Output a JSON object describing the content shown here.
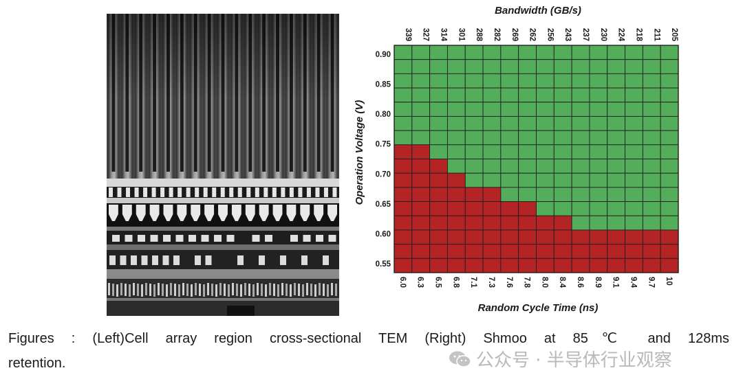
{
  "left_panel": {
    "type": "TEM cross-section image"
  },
  "chart_data": {
    "type": "heatmap",
    "title": "",
    "top_axis_label": "Bandwidth (GB/s)",
    "top_ticks": [
      "339",
      "327",
      "314",
      "301",
      "288",
      "282",
      "269",
      "262",
      "256",
      "243",
      "237",
      "230",
      "224",
      "218",
      "211",
      "205"
    ],
    "xlabel": "Random Cycle Time (ns)",
    "x": [
      "6.0",
      "6.3",
      "6.5",
      "6.8",
      "7.1",
      "7.3",
      "7.6",
      "7.8",
      "8.0",
      "8.4",
      "8.6",
      "8.9",
      "9.1",
      "9.4",
      "9.7",
      "10"
    ],
    "ylabel": "Operation Voltage (V)",
    "y_ticks": [
      "0.90",
      "0.85",
      "0.80",
      "0.75",
      "0.70",
      "0.65",
      "0.60",
      "0.55"
    ],
    "y_range": [
      0.535,
      0.915
    ],
    "rows": 16,
    "min_pass_voltage": [
      0.745,
      0.745,
      0.72,
      0.695,
      0.67,
      0.67,
      0.645,
      0.645,
      0.62,
      0.62,
      0.595,
      0.595,
      0.595,
      0.595,
      0.595,
      0.595
    ],
    "colors": {
      "pass": "#54ad5b",
      "fail": "#b42424",
      "grid": "#1f1f1f"
    }
  },
  "caption": {
    "line1": "Figures : (Left)Cell array region cross-sectional TEM  (Right) Shmoo at 85℃ and 128ms",
    "line2": "retention."
  },
  "watermark": {
    "text": "公众号 · 半导体行业观察",
    "icon": "wechat-icon"
  }
}
